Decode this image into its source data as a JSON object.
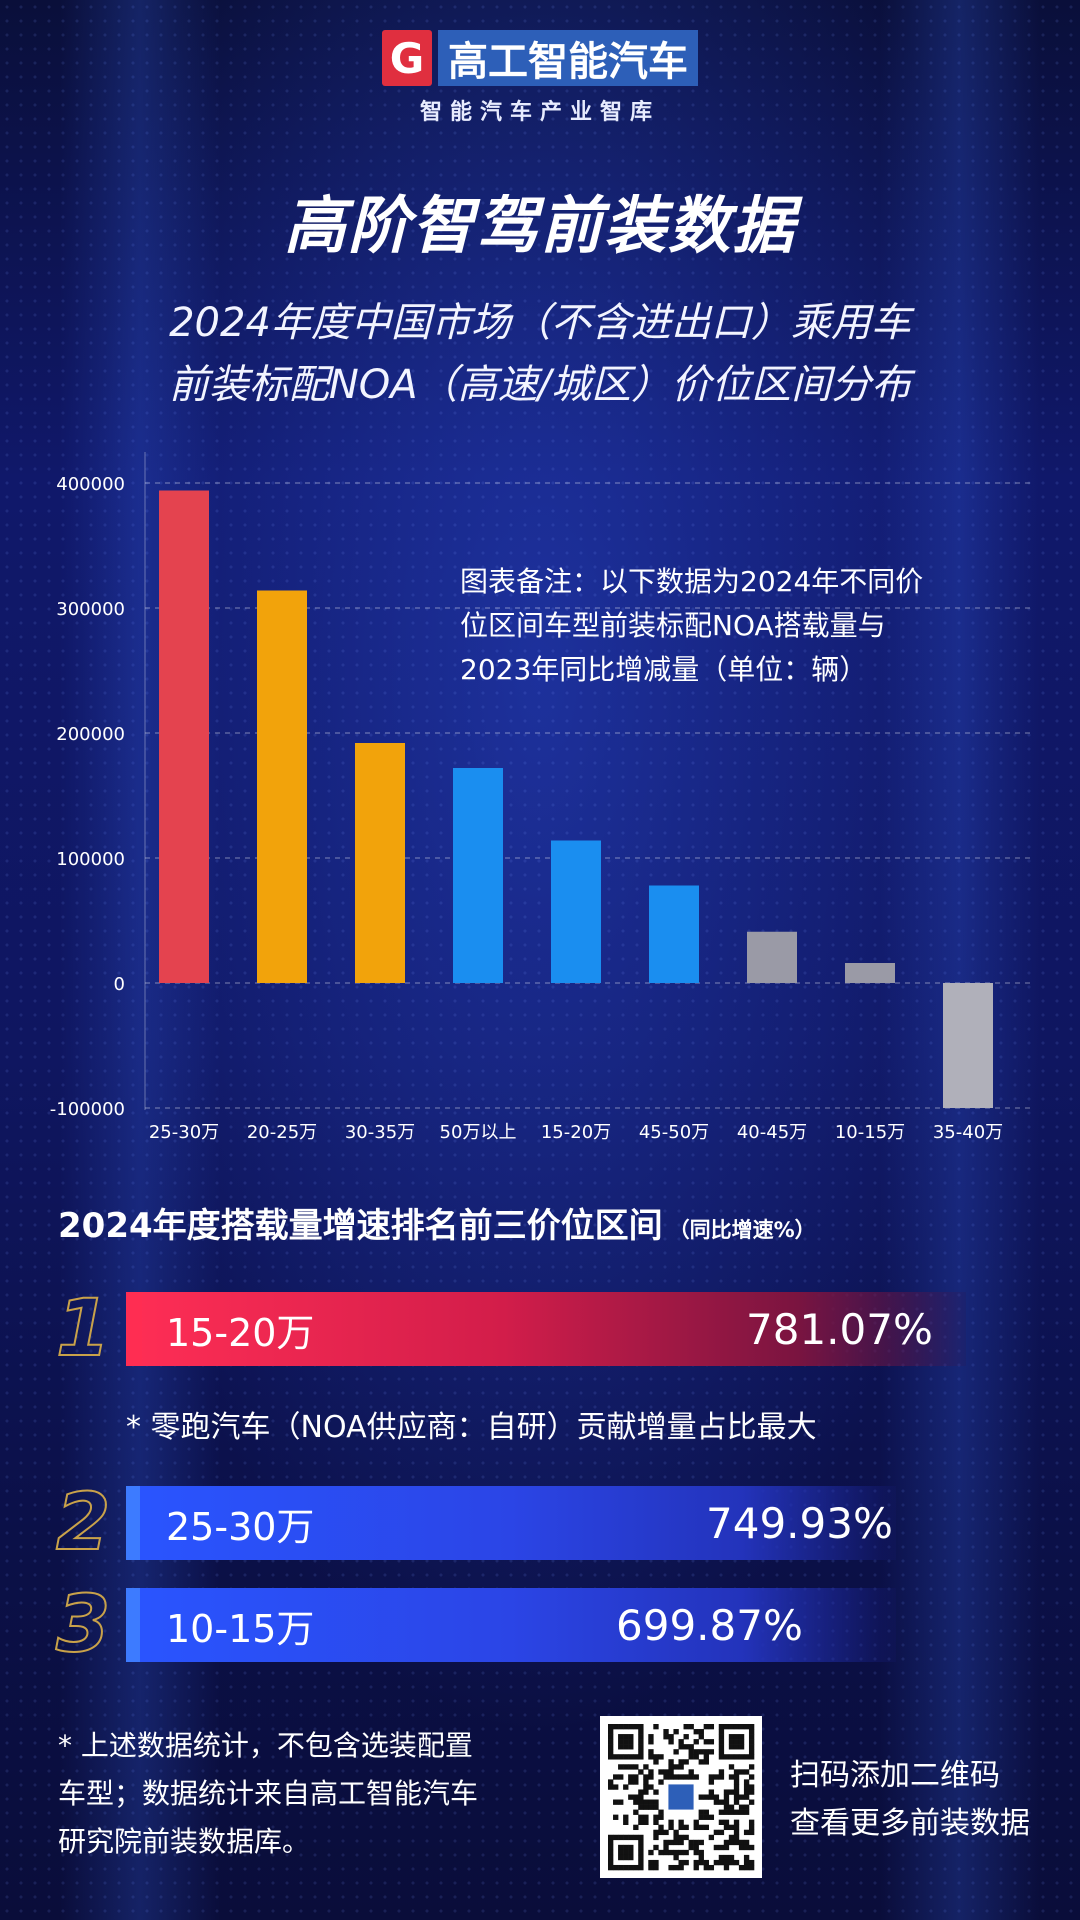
{
  "logo": {
    "badge": "G",
    "name": "高工智能汽车",
    "tagline": "智能汽车产业智库"
  },
  "title": "高阶智驾前装数据",
  "subtitle_lines": [
    "2024年度中国市场（不含进出口）乘用车",
    "前装标配NOA（高速/城区）价位区间分布"
  ],
  "chart_data": {
    "type": "bar",
    "categories": [
      "25-30万",
      "20-25万",
      "30-35万",
      "50万以上",
      "15-20万",
      "45-50万",
      "40-45万",
      "10-15万",
      "35-40万"
    ],
    "values": [
      394000,
      314000,
      192000,
      172000,
      114000,
      78000,
      41000,
      16000,
      -100000
    ],
    "colors": [
      "#e4434f",
      "#f2a30b",
      "#f2a30b",
      "#1a8ef0",
      "#1a8ef0",
      "#1a8ef0",
      "#9a9aa6",
      "#9a9aa6",
      "#b0b0ba"
    ],
    "ylim": [
      -100000,
      420000
    ],
    "yticks": [
      -100000,
      0,
      100000,
      200000,
      300000,
      400000
    ],
    "ytick_labels": [
      "-100000",
      "0",
      "100000",
      "200000",
      "300000",
      "400000"
    ],
    "grid": true
  },
  "chart_note_lines": [
    "图表备注：以下数据为2024年不同价",
    "位区间车型前装标配NOA搭载量与",
    "2023年同比增减量（单位：辆）"
  ],
  "ranking": {
    "title": "2024年度搭载量增速排名前三价位区间",
    "title_suffix": "（同比增速%）",
    "items": [
      {
        "rank": "1",
        "range": "15-20万",
        "growth": "781.07%"
      },
      {
        "rank": "2",
        "range": "25-30万",
        "growth": "749.93%"
      },
      {
        "rank": "3",
        "range": "10-15万",
        "growth": "699.87%"
      }
    ],
    "note": "* 零跑汽车（NOA供应商：自研）贡献增量占比最大"
  },
  "footer": {
    "note_lines": [
      "* 上述数据统计，不包含选装配置",
      "车型；数据统计来自高工智能汽车",
      "研究院前装数据库。"
    ],
    "qr_lines": [
      "扫码添加二维码",
      "查看更多前装数据"
    ]
  }
}
